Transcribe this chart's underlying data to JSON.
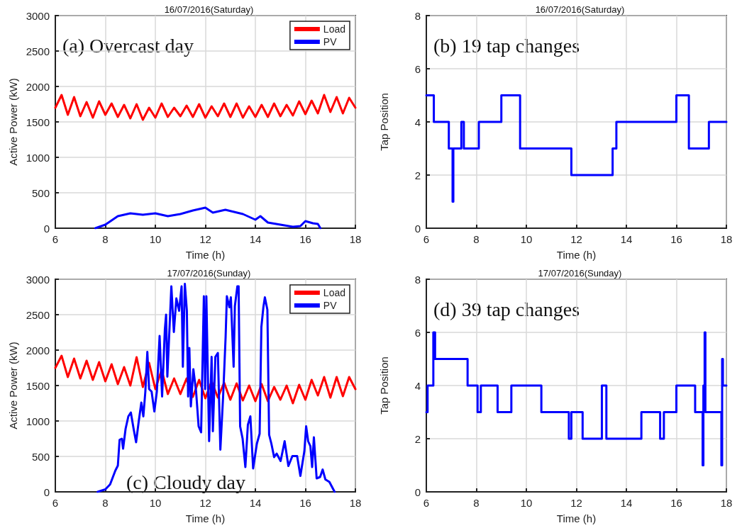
{
  "chart_data": [
    {
      "type": "line",
      "title": "16/07/2016(Saturday)",
      "xlabel": "Time (h)",
      "ylabel": "Active Power (kW)",
      "annotations": [
        "(a) Overcast day"
      ],
      "xlim": [
        6,
        18
      ],
      "xticks": [
        6,
        8,
        10,
        12,
        14,
        16,
        18
      ],
      "ylim": [
        0,
        3000
      ],
      "yticks": [
        0,
        500,
        1000,
        1500,
        2000,
        2500,
        3000
      ],
      "grid": true,
      "legend": "top right",
      "line_style": "solid",
      "marker": "none",
      "series": [
        {
          "name": "Load",
          "color": "#ff0000",
          "x": [
            6,
            6.25,
            6.5,
            6.75,
            7,
            7.25,
            7.5,
            7.75,
            8,
            8.25,
            8.5,
            8.75,
            9,
            9.25,
            9.5,
            9.75,
            10,
            10.25,
            10.5,
            10.75,
            11,
            11.25,
            11.5,
            11.75,
            12,
            12.25,
            12.5,
            12.75,
            13,
            13.25,
            13.5,
            13.75,
            14,
            14.25,
            14.5,
            14.75,
            15,
            15.25,
            15.5,
            15.75,
            16,
            16.25,
            16.5,
            16.75,
            17,
            17.25,
            17.5,
            17.75,
            18
          ],
          "values": [
            1700,
            1880,
            1600,
            1850,
            1580,
            1780,
            1560,
            1790,
            1600,
            1760,
            1570,
            1740,
            1550,
            1750,
            1530,
            1700,
            1560,
            1760,
            1570,
            1700,
            1580,
            1730,
            1570,
            1750,
            1560,
            1720,
            1580,
            1760,
            1570,
            1760,
            1560,
            1720,
            1570,
            1740,
            1570,
            1760,
            1580,
            1740,
            1590,
            1790,
            1610,
            1800,
            1620,
            1880,
            1640,
            1850,
            1620,
            1840,
            1700
          ]
        },
        {
          "name": "PV",
          "color": "#0000ff",
          "x": [
            7.6,
            8,
            8.5,
            9,
            9.5,
            10,
            10.5,
            11,
            11.5,
            12,
            12.3,
            12.8,
            13.5,
            14,
            14.2,
            14.5,
            15,
            15.5,
            15.8,
            16,
            16.3,
            16.5,
            16.6
          ],
          "values": [
            0,
            50,
            170,
            210,
            190,
            210,
            170,
            200,
            250,
            290,
            220,
            260,
            200,
            120,
            170,
            80,
            50,
            20,
            30,
            100,
            70,
            60,
            0
          ]
        }
      ]
    },
    {
      "type": "step",
      "title": "16/07/2016(Saturday)",
      "xlabel": "Time (h)",
      "ylabel": "Tap Position",
      "annotations": [
        "(b) 19 tap changes"
      ],
      "xlim": [
        6,
        18
      ],
      "xticks": [
        6,
        8,
        10,
        12,
        14,
        16,
        18
      ],
      "ylim": [
        0,
        8
      ],
      "yticks": [
        0,
        2,
        4,
        6,
        8
      ],
      "grid": true,
      "line_style": "solid",
      "marker": "none",
      "series": [
        {
          "color": "#0000ff",
          "x": [
            6,
            6.3,
            6.9,
            7.05,
            7.08,
            7.4,
            7.5,
            8.1,
            9,
            9.75,
            11.8,
            13.45,
            13.6,
            16,
            16.5,
            17.3,
            18
          ],
          "values": [
            5,
            4,
            3,
            1,
            3,
            4,
            3,
            4,
            5,
            3,
            2,
            3,
            4,
            5,
            3,
            4,
            4
          ]
        }
      ]
    },
    {
      "type": "line",
      "title": "17/07/2016(Sunday)",
      "xlabel": "Time (h)",
      "ylabel": "Active Power (kW)",
      "annotations": [
        "(c) Cloudy day"
      ],
      "xlim": [
        6,
        18
      ],
      "xticks": [
        6,
        8,
        10,
        12,
        14,
        16,
        18
      ],
      "ylim": [
        0,
        3000
      ],
      "yticks": [
        0,
        500,
        1000,
        1500,
        2000,
        2500,
        3000
      ],
      "grid": true,
      "legend": "top right",
      "line_style": "solid",
      "marker": "none",
      "series": [
        {
          "name": "Load",
          "color": "#ff0000",
          "x": [
            6,
            6.25,
            6.5,
            6.75,
            7,
            7.25,
            7.5,
            7.75,
            8,
            8.25,
            8.5,
            8.75,
            9,
            9.25,
            9.5,
            9.75,
            10,
            10.25,
            10.5,
            10.75,
            11,
            11.25,
            11.5,
            11.75,
            12,
            12.25,
            12.5,
            12.75,
            13,
            13.25,
            13.5,
            13.75,
            14,
            14.25,
            14.5,
            14.75,
            15,
            15.25,
            15.5,
            15.75,
            16,
            16.25,
            16.5,
            16.75,
            17,
            17.25,
            17.5,
            17.75,
            18
          ],
          "values": [
            1750,
            1920,
            1620,
            1880,
            1600,
            1850,
            1580,
            1830,
            1560,
            1800,
            1520,
            1760,
            1500,
            1900,
            1480,
            1820,
            1450,
            1720,
            1380,
            1600,
            1380,
            1600,
            1340,
            1580,
            1320,
            1560,
            1330,
            1540,
            1300,
            1530,
            1290,
            1500,
            1280,
            1520,
            1280,
            1480,
            1300,
            1500,
            1250,
            1510,
            1300,
            1580,
            1360,
            1620,
            1330,
            1620,
            1350,
            1620,
            1450
          ]
        },
        {
          "name": "PV",
          "color": "#0000ff",
          "x": [
            7.69,
            8,
            8.19,
            8.4,
            8.5,
            8.57,
            8.66,
            8.71,
            8.81,
            8.92,
            9.02,
            9.13,
            9.23,
            9.33,
            9.44,
            9.52,
            9.6,
            9.68,
            9.75,
            9.85,
            9.96,
            10.06,
            10.17,
            10.27,
            10.38,
            10.43,
            10.48,
            10.64,
            10.74,
            10.84,
            10.95,
            11.05,
            11.1,
            11.18,
            11.26,
            11.31,
            11.36,
            11.42,
            11.52,
            11.63,
            11.73,
            11.83,
            11.94,
            11.99,
            12.04,
            12.15,
            12.25,
            12.3,
            12.4,
            12.5,
            12.6,
            12.71,
            12.81,
            12.86,
            12.96,
            13.02,
            13.13,
            13.18,
            13.28,
            13.33,
            13.39,
            13.49,
            13.6,
            13.7,
            13.8,
            13.91,
            14.06,
            14.17,
            14.24,
            14.32,
            14.38,
            14.48,
            14.55,
            14.64,
            14.75,
            14.85,
            15.01,
            15.17,
            15.32,
            15.48,
            15.67,
            15.8,
            15.96,
            16.03,
            16.11,
            16.2,
            16.27,
            16.34,
            16.45,
            16.59,
            16.69,
            16.8,
            16.96,
            17.17
          ],
          "values": [
            0,
            35,
            105,
            300,
            370,
            735,
            750,
            610,
            890,
            1065,
            1120,
            890,
            700,
            980,
            1260,
            1065,
            1415,
            1975,
            1450,
            1415,
            1135,
            1415,
            2200,
            1345,
            2290,
            2500,
            1625,
            2900,
            2255,
            2730,
            2555,
            2900,
            1765,
            2935,
            2555,
            1345,
            2030,
            1205,
            1730,
            1415,
            925,
            840,
            2760,
            1450,
            2760,
            715,
            1905,
            855,
            1905,
            1960,
            595,
            1345,
            2185,
            2760,
            2605,
            2745,
            1765,
            2620,
            2900,
            2900,
            925,
            750,
            350,
            945,
            1065,
            330,
            680,
            820,
            2325,
            2605,
            2745,
            2570,
            805,
            680,
            490,
            540,
            435,
            715,
            365,
            505,
            505,
            225,
            575,
            925,
            715,
            645,
            350,
            770,
            190,
            210,
            315,
            175,
            140,
            0
          ]
        }
      ]
    },
    {
      "type": "step",
      "title": "17/07/2016(Sunday)",
      "xlabel": "Time (h)",
      "ylabel": "Tap Position",
      "annotations": [
        "(d) 39 tap changes"
      ],
      "xlim": [
        6,
        18
      ],
      "xticks": [
        6,
        8,
        10,
        12,
        14,
        16,
        18
      ],
      "ylim": [
        0,
        8
      ],
      "yticks": [
        0,
        2,
        4,
        6,
        8
      ],
      "grid": true,
      "line_style": "solid",
      "marker": "none",
      "series": [
        {
          "color": "#0000ff",
          "x": [
            6,
            6.05,
            6.28,
            6.35,
            7.65,
            8.05,
            8.18,
            8.85,
            9.4,
            10.6,
            11.7,
            11.8,
            12.25,
            13.02,
            13.2,
            14.6,
            15.35,
            15.5,
            16,
            16.75,
            17.05,
            17.08,
            17.13,
            17.16,
            17.8,
            17.83,
            17.86,
            18
          ],
          "values": [
            3,
            4,
            6,
            5,
            4,
            3,
            4,
            3,
            4,
            3,
            2,
            3,
            2,
            4,
            2,
            3,
            2,
            3,
            4,
            3,
            1,
            4,
            6,
            3,
            1,
            5,
            4,
            4
          ]
        }
      ]
    }
  ]
}
